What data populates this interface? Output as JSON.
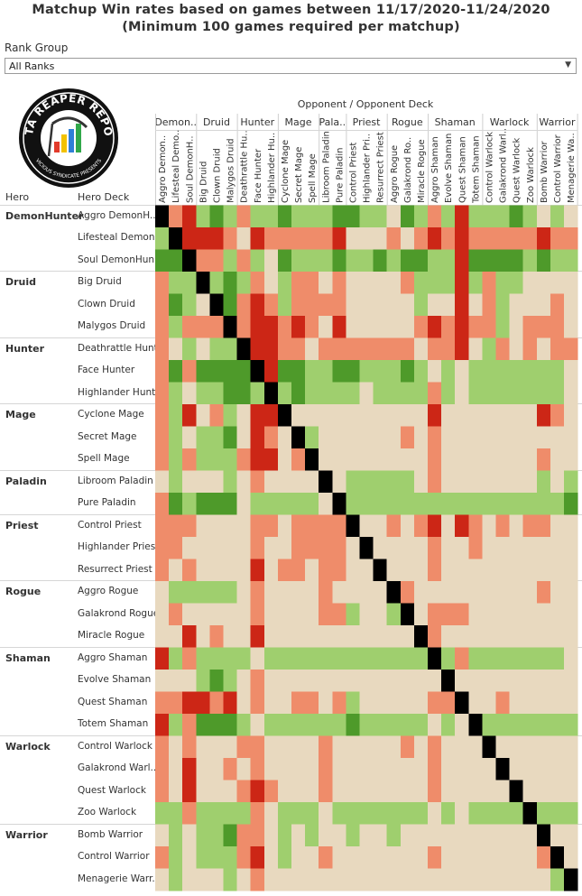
{
  "title_line1": "Matchup Win rates based on games between 11/17/2020-11/24/2020",
  "title_line2": "(Minimum 100 games required per matchup)",
  "filter": {
    "label": "Rank Group",
    "value": "All Ranks"
  },
  "logo": {
    "text_top": "DATA REAPER REPORT",
    "text_bottom": "VICIOUS SYNDICATE PRESENTS"
  },
  "colors": {
    "strong_fav": "#4e9a2a",
    "fav": "#9fcf6e",
    "even": "#e8d9bf",
    "unfav": "#ef8c6a",
    "strong_unfav": "#cc2616",
    "mirror": "#000000"
  },
  "chart_data": {
    "type": "heatmap",
    "title": "Matchup Win rates based on games between 11/17/2020-11/24/2020",
    "subtitle": "(Minimum 100 games required per matchup)",
    "x_axis_title": "Opponent  /  Opponent Deck",
    "row_headers": [
      "Hero",
      "Hero Deck"
    ],
    "level_scale": "5 = strongly favored, 4 = favored, 3 = even, 2 = unfavored, 1 = strongly unfavored, 0 = mirror",
    "classes": [
      {
        "name": "DemonHunter",
        "col_label": "Demon..",
        "decks": [
          "Aggro DemonH..",
          "Lifesteal Demon..",
          "Soul DemonHun.."
        ]
      },
      {
        "name": "Druid",
        "col_label": "Druid",
        "decks": [
          "Big Druid",
          "Clown Druid",
          "Malygos Druid"
        ]
      },
      {
        "name": "Hunter",
        "col_label": "Hunter",
        "decks": [
          "Deathrattle Hunt..",
          "Face Hunter",
          "Highlander Hunt.."
        ]
      },
      {
        "name": "Mage",
        "col_label": "Mage",
        "decks": [
          "Cyclone Mage",
          "Secret Mage",
          "Spell Mage"
        ]
      },
      {
        "name": "Paladin",
        "col_label": "Pala..",
        "decks": [
          "Libroom Paladin",
          "Pure Paladin"
        ]
      },
      {
        "name": "Priest",
        "col_label": "Priest",
        "decks": [
          "Control Priest",
          "Highlander Priest",
          "Resurrect Priest"
        ]
      },
      {
        "name": "Rogue",
        "col_label": "Rogue",
        "decks": [
          "Aggro Rogue",
          "Galakrond Rogue",
          "Miracle Rogue"
        ]
      },
      {
        "name": "Shaman",
        "col_label": "Shaman",
        "decks": [
          "Aggro Shaman",
          "Evolve Shaman",
          "Quest Shaman",
          "Totem Shaman"
        ]
      },
      {
        "name": "Warlock",
        "col_label": "Warlock",
        "decks": [
          "Control Warlock",
          "Galakrond Warl..",
          "Quest Warlock",
          "Zoo Warlock"
        ]
      },
      {
        "name": "Warrior",
        "col_label": "Warrior",
        "decks": [
          "Bomb Warrior",
          "Control Warrior",
          "Menagerie Warr.."
        ]
      }
    ],
    "opponent_decks": [
      "Aggro Demon..",
      "Lifesteal Demo..",
      "Soul DemonH..",
      "Big Druid",
      "Clown Druid",
      "Malygos Druid",
      "Deathrattle Hu..",
      "Face Hunter",
      "Highlander Hu..",
      "Cyclone Mage",
      "Secret Mage",
      "Spell Mage",
      "Libroom Paladin",
      "Pure Paladin",
      "Control Priest",
      "Highlander Pri..",
      "Resurrect Priest",
      "Aggro Rogue",
      "Galakrond Ro..",
      "Miracle Rogue",
      "Aggro Shaman",
      "Evolve Shaman",
      "Quest Shaman",
      "Totem Shaman",
      "Control Warlock",
      "Galakrond Warl..",
      "Quest Warlock",
      "Zoo Warlock",
      "Bomb Warrior",
      "Control Warrior",
      "Menagerie Wa.."
    ],
    "levels": [
      [
        0,
        2,
        1,
        4,
        5,
        4,
        2,
        4,
        4,
        5,
        4,
        4,
        4,
        5,
        5,
        4,
        4,
        3,
        5,
        4,
        2,
        4,
        1,
        4,
        4,
        4,
        5,
        4,
        3,
        4,
        3
      ],
      [
        4,
        0,
        1,
        1,
        1,
        2,
        3,
        1,
        2,
        2,
        2,
        2,
        2,
        1,
        3,
        3,
        3,
        2,
        3,
        2,
        1,
        2,
        1,
        2,
        2,
        2,
        2,
        2,
        1,
        2,
        2
      ],
      [
        5,
        5,
        0,
        2,
        2,
        4,
        2,
        4,
        3,
        5,
        4,
        4,
        4,
        5,
        4,
        4,
        5,
        4,
        5,
        5,
        4,
        4,
        1,
        5,
        5,
        5,
        5,
        4,
        5,
        4,
        4
      ],
      [
        2,
        4,
        4,
        0,
        4,
        5,
        4,
        2,
        3,
        4,
        2,
        2,
        3,
        2,
        3,
        3,
        3,
        3,
        2,
        4,
        4,
        4,
        1,
        4,
        2,
        4,
        4,
        3,
        3,
        3,
        3
      ],
      [
        2,
        5,
        4,
        3,
        0,
        5,
        2,
        1,
        2,
        4,
        2,
        2,
        2,
        2,
        3,
        3,
        3,
        3,
        3,
        4,
        3,
        3,
        1,
        3,
        2,
        4,
        3,
        3,
        3,
        2,
        3
      ],
      [
        2,
        4,
        2,
        2,
        2,
        0,
        2,
        1,
        1,
        2,
        1,
        2,
        3,
        1,
        3,
        3,
        3,
        3,
        3,
        2,
        1,
        2,
        1,
        2,
        2,
        4,
        3,
        2,
        2,
        2,
        3
      ],
      [
        2,
        3,
        4,
        3,
        4,
        4,
        0,
        1,
        1,
        2,
        2,
        3,
        2,
        2,
        2,
        2,
        2,
        2,
        2,
        3,
        2,
        2,
        1,
        3,
        4,
        2,
        3,
        2,
        3,
        2,
        2
      ],
      [
        2,
        5,
        2,
        5,
        5,
        5,
        5,
        0,
        1,
        5,
        5,
        4,
        4,
        5,
        5,
        4,
        4,
        4,
        5,
        4,
        3,
        4,
        3,
        4,
        4,
        4,
        4,
        4,
        4,
        4,
        3
      ],
      [
        2,
        4,
        3,
        4,
        4,
        5,
        5,
        4,
        0,
        4,
        5,
        4,
        4,
        4,
        4,
        3,
        4,
        4,
        4,
        4,
        2,
        4,
        3,
        4,
        4,
        4,
        4,
        4,
        4,
        4,
        3
      ],
      [
        2,
        4,
        1,
        3,
        2,
        4,
        3,
        1,
        1,
        0,
        3,
        3,
        3,
        3,
        3,
        3,
        3,
        3,
        3,
        3,
        1,
        3,
        3,
        3,
        3,
        3,
        3,
        3,
        1,
        2,
        3
      ],
      [
        2,
        4,
        3,
        4,
        4,
        5,
        3,
        1,
        2,
        3,
        0,
        4,
        3,
        3,
        3,
        3,
        3,
        3,
        2,
        3,
        2,
        3,
        3,
        3,
        3,
        3,
        3,
        3,
        3,
        3,
        3
      ],
      [
        2,
        4,
        2,
        4,
        4,
        4,
        2,
        1,
        1,
        3,
        2,
        0,
        3,
        3,
        3,
        3,
        3,
        3,
        3,
        3,
        2,
        3,
        3,
        3,
        3,
        3,
        3,
        3,
        2,
        3,
        3
      ],
      [
        3,
        4,
        3,
        3,
        3,
        4,
        3,
        2,
        3,
        3,
        3,
        3,
        0,
        3,
        4,
        4,
        4,
        4,
        4,
        3,
        2,
        3,
        3,
        3,
        3,
        3,
        3,
        3,
        4,
        3,
        4
      ],
      [
        2,
        5,
        4,
        5,
        5,
        5,
        3,
        4,
        4,
        4,
        4,
        4,
        3,
        0,
        4,
        4,
        4,
        4,
        4,
        4,
        4,
        4,
        4,
        4,
        4,
        4,
        4,
        4,
        4,
        4,
        5
      ],
      [
        2,
        2,
        2,
        3,
        3,
        3,
        3,
        2,
        2,
        3,
        2,
        2,
        2,
        2,
        0,
        3,
        3,
        2,
        3,
        2,
        1,
        3,
        1,
        2,
        3,
        2,
        3,
        2,
        2,
        3,
        3
      ],
      [
        2,
        2,
        3,
        3,
        3,
        3,
        3,
        2,
        3,
        3,
        2,
        2,
        2,
        2,
        3,
        0,
        3,
        3,
        3,
        3,
        2,
        3,
        3,
        2,
        3,
        3,
        3,
        3,
        3,
        3,
        3
      ],
      [
        2,
        3,
        2,
        3,
        3,
        3,
        3,
        1,
        3,
        2,
        2,
        3,
        2,
        2,
        3,
        3,
        0,
        3,
        3,
        3,
        2,
        3,
        3,
        3,
        3,
        3,
        3,
        3,
        3,
        3,
        3
      ],
      [
        3,
        4,
        4,
        4,
        4,
        4,
        3,
        2,
        3,
        3,
        3,
        3,
        2,
        3,
        3,
        3,
        3,
        0,
        2,
        3,
        3,
        3,
        3,
        3,
        3,
        3,
        3,
        3,
        2,
        3,
        3
      ],
      [
        3,
        2,
        3,
        3,
        3,
        3,
        3,
        2,
        3,
        3,
        3,
        3,
        2,
        2,
        4,
        3,
        3,
        4,
        0,
        3,
        2,
        2,
        2,
        3,
        3,
        3,
        3,
        3,
        3,
        3,
        3
      ],
      [
        3,
        3,
        1,
        3,
        2,
        3,
        3,
        1,
        3,
        3,
        3,
        3,
        3,
        3,
        3,
        3,
        3,
        3,
        3,
        0,
        2,
        3,
        3,
        3,
        3,
        3,
        3,
        3,
        3,
        3,
        3
      ],
      [
        1,
        4,
        2,
        4,
        4,
        4,
        4,
        3,
        4,
        4,
        4,
        4,
        4,
        4,
        4,
        4,
        4,
        4,
        4,
        4,
        0,
        4,
        2,
        4,
        4,
        4,
        4,
        4,
        4,
        4,
        3
      ],
      [
        3,
        3,
        3,
        4,
        5,
        4,
        3,
        2,
        3,
        3,
        3,
        3,
        3,
        3,
        3,
        3,
        3,
        3,
        3,
        3,
        3,
        0,
        3,
        3,
        3,
        3,
        3,
        3,
        3,
        3,
        3
      ],
      [
        2,
        2,
        1,
        1,
        2,
        1,
        3,
        2,
        3,
        3,
        2,
        2,
        3,
        2,
        4,
        3,
        3,
        3,
        3,
        3,
        2,
        2,
        0,
        3,
        3,
        2,
        3,
        3,
        3,
        3,
        3
      ],
      [
        1,
        4,
        2,
        5,
        5,
        5,
        4,
        3,
        4,
        4,
        4,
        4,
        4,
        4,
        5,
        4,
        4,
        4,
        4,
        4,
        3,
        4,
        3,
        0,
        4,
        4,
        4,
        4,
        4,
        4,
        4
      ],
      [
        2,
        3,
        2,
        3,
        3,
        3,
        2,
        2,
        3,
        3,
        3,
        3,
        2,
        3,
        3,
        3,
        3,
        3,
        2,
        3,
        2,
        3,
        3,
        3,
        0,
        3,
        3,
        3,
        3,
        3,
        3
      ],
      [
        2,
        3,
        1,
        3,
        3,
        2,
        3,
        2,
        3,
        3,
        3,
        3,
        2,
        3,
        3,
        3,
        3,
        3,
        3,
        3,
        2,
        3,
        3,
        3,
        3,
        0,
        3,
        3,
        3,
        3,
        3
      ],
      [
        2,
        3,
        1,
        3,
        3,
        3,
        2,
        1,
        2,
        3,
        3,
        3,
        2,
        3,
        3,
        3,
        3,
        3,
        3,
        3,
        2,
        3,
        3,
        3,
        3,
        3,
        0,
        3,
        3,
        3,
        3
      ],
      [
        4,
        4,
        2,
        4,
        4,
        4,
        4,
        2,
        3,
        4,
        4,
        4,
        3,
        4,
        4,
        4,
        4,
        4,
        4,
        4,
        3,
        4,
        3,
        4,
        4,
        4,
        4,
        0,
        4,
        4,
        4
      ],
      [
        3,
        4,
        3,
        4,
        4,
        5,
        2,
        2,
        3,
        4,
        3,
        4,
        3,
        3,
        4,
        3,
        3,
        4,
        3,
        3,
        3,
        3,
        3,
        3,
        3,
        3,
        3,
        3,
        0,
        3,
        3
      ],
      [
        2,
        4,
        3,
        4,
        4,
        4,
        2,
        1,
        3,
        4,
        3,
        3,
        2,
        3,
        3,
        3,
        3,
        3,
        3,
        3,
        2,
        3,
        3,
        3,
        3,
        3,
        3,
        3,
        2,
        0,
        3
      ],
      [
        3,
        4,
        3,
        3,
        3,
        4,
        3,
        2,
        3,
        3,
        3,
        3,
        3,
        3,
        3,
        3,
        3,
        3,
        3,
        3,
        3,
        3,
        3,
        3,
        3,
        3,
        3,
        3,
        3,
        4,
        0
      ]
    ]
  }
}
